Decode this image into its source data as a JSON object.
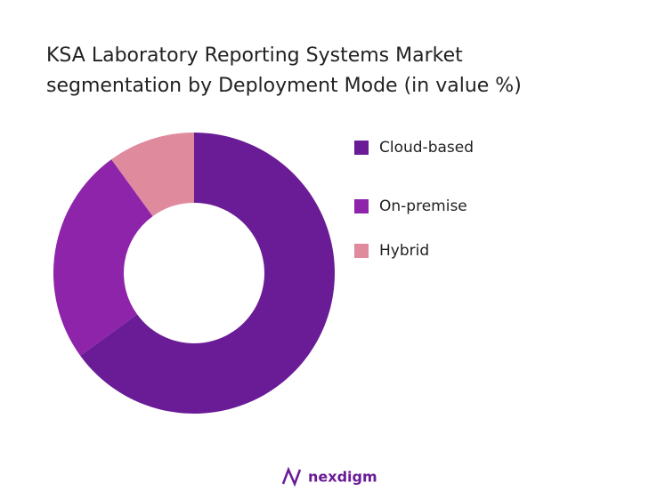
{
  "chart_data": {
    "type": "donut",
    "title": "KSA Laboratory Reporting Systems Market segmentation by Deployment Mode (in value %)",
    "categories": [
      "Cloud-based",
      "On-premise",
      "Hybrid"
    ],
    "values": [
      65,
      25,
      10
    ],
    "colors": [
      "#6a1b96",
      "#8e24aa",
      "#e08a9e"
    ],
    "legend": "right"
  },
  "footer": {
    "brand": "nexdigm"
  }
}
